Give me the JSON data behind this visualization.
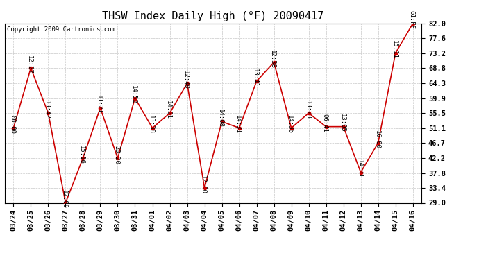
{
  "title": "THSW Index Daily High (°F) 20090417",
  "copyright": "Copyright 2009 Cartronics.com",
  "dates": [
    "03/24",
    "03/25",
    "03/26",
    "03/27",
    "03/28",
    "03/29",
    "03/30",
    "03/31",
    "04/01",
    "04/02",
    "04/03",
    "04/04",
    "04/05",
    "04/06",
    "04/07",
    "04/08",
    "04/09",
    "04/10",
    "04/11",
    "04/12",
    "04/13",
    "04/14",
    "04/15",
    "04/16"
  ],
  "values": [
    51.1,
    68.8,
    55.5,
    29.0,
    42.2,
    57.0,
    42.2,
    59.9,
    51.1,
    55.5,
    64.3,
    33.4,
    53.0,
    51.1,
    64.9,
    70.5,
    51.1,
    55.5,
    51.5,
    51.5,
    38.0,
    46.7,
    73.2,
    82.0
  ],
  "labels": [
    "00:00",
    "12:27",
    "13:42",
    "12:06",
    "15:16",
    "11:21",
    "20:20",
    "14:52",
    "13:38",
    "14:51",
    "12:40",
    "12:00",
    "14:08",
    "14:31",
    "13:41",
    "12:38",
    "14:36",
    "13:23",
    "06:41",
    "13:05",
    "14:31",
    "16:00",
    "15:11",
    "61:FF"
  ],
  "ylim_min": 29.0,
  "ylim_max": 82.0,
  "yticks": [
    29.0,
    33.4,
    37.8,
    42.2,
    46.7,
    51.1,
    55.5,
    59.9,
    64.3,
    68.8,
    73.2,
    77.6,
    82.0
  ],
  "line_color": "#cc0000",
  "marker_color": "#cc0000",
  "bg_color": "#ffffff",
  "grid_color": "#c8c8c8",
  "title_fontsize": 11,
  "label_fontsize": 6.5,
  "tick_fontsize": 7.5,
  "copyright_fontsize": 6.5
}
